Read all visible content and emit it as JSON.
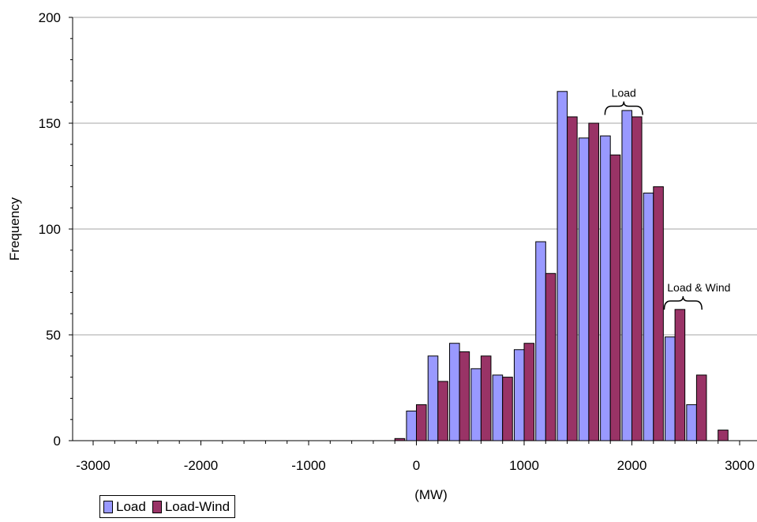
{
  "chart_data": {
    "type": "bar",
    "xlabel": "(MW)",
    "ylabel": "Frequency",
    "xlim": [
      -3000,
      3000
    ],
    "ylim": [
      0,
      200
    ],
    "x_ticks": [
      -3000,
      -2000,
      -1000,
      0,
      1000,
      2000,
      3000
    ],
    "y_ticks": [
      0,
      50,
      100,
      150,
      200
    ],
    "grid": "horizontal",
    "legend_position": "bottom-left",
    "bin_width": 200,
    "categories": [
      -200,
      0,
      200,
      400,
      600,
      800,
      1000,
      1200,
      1400,
      1600,
      1800,
      2000,
      2200,
      2400,
      2600,
      2800
    ],
    "series": [
      {
        "name": "Load",
        "color": "#9999ff",
        "values": [
          0,
          14,
          40,
          46,
          34,
          31,
          43,
          94,
          165,
          143,
          144,
          156,
          117,
          49,
          17,
          0
        ]
      },
      {
        "name": "Load-Wind",
        "color": "#993366",
        "values": [
          1,
          17,
          28,
          42,
          40,
          30,
          46,
          79,
          153,
          150,
          135,
          153,
          120,
          62,
          31,
          5
        ]
      }
    ],
    "annotations": [
      {
        "text": "Load",
        "from": 1750,
        "to": 2100,
        "y": 158
      },
      {
        "text": "Load & Wind",
        "from": 2300,
        "to": 2650,
        "y": 66
      }
    ]
  }
}
